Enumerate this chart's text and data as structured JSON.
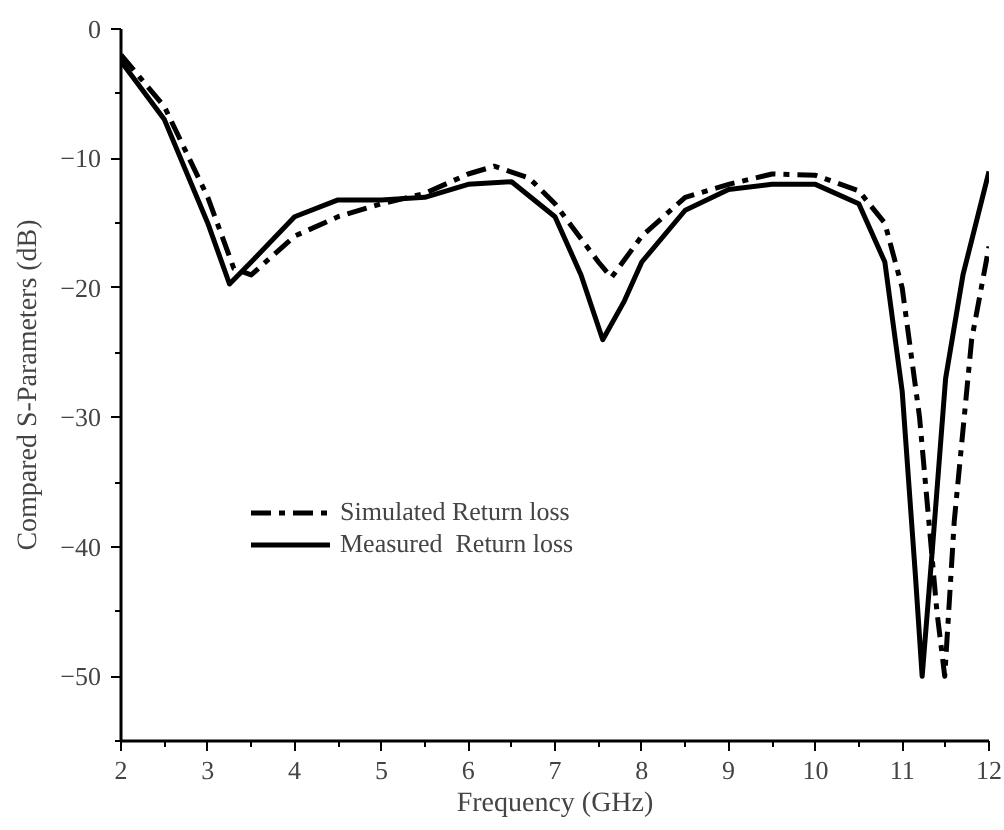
{
  "chart_data": {
    "type": "line",
    "xlabel": "Frequency (GHz)",
    "ylabel": "Compared S-Parameters (dB)",
    "xlim": [
      2,
      12
    ],
    "xticks": [
      2,
      3,
      4,
      5,
      6,
      7,
      8,
      9,
      10,
      11,
      12
    ],
    "ylim": [
      -55,
      0
    ],
    "yticks": [
      0,
      -10,
      -20,
      -30,
      -40,
      -50
    ],
    "grid": false,
    "legend": "bottom left",
    "series": [
      {
        "name": "Simulated Return loss",
        "color": "#000000",
        "line_style": "dashdot",
        "x": [
          2,
          2.5,
          3,
          3.3,
          3.5,
          4,
          4.5,
          5,
          5.5,
          6,
          6.3,
          6.7,
          7,
          7.5,
          7.65,
          8,
          8.5,
          9,
          9.5,
          10,
          10.5,
          10.8,
          11,
          11.2,
          11.4,
          11.49,
          11.6,
          11.8,
          12
        ],
        "values": [
          -2,
          -6,
          -13,
          -18.5,
          -19,
          -16,
          -14.5,
          -13.5,
          -12.7,
          -11.2,
          -10.6,
          -11.5,
          -13.5,
          -18,
          -19.2,
          -16,
          -13,
          -12,
          -11.2,
          -11.3,
          -12.5,
          -15,
          -20,
          -30,
          -45,
          -50,
          -38,
          -24,
          -16.8
        ]
      },
      {
        "name": "Measured  Return loss",
        "color": "#000000",
        "line_style": "solid",
        "x": [
          2,
          2.5,
          3,
          3.25,
          3.5,
          4,
          4.5,
          5,
          5.5,
          6,
          6.5,
          7,
          7.3,
          7.55,
          7.8,
          8,
          8.5,
          9,
          9.5,
          10,
          10.5,
          10.8,
          11,
          11.15,
          11.23,
          11.35,
          11.5,
          11.7,
          12
        ],
        "values": [
          -2.5,
          -7,
          -15,
          -19.7,
          -18,
          -14.5,
          -13.2,
          -13.2,
          -13,
          -12,
          -11.8,
          -14.5,
          -19,
          -24,
          -21,
          -18,
          -14,
          -12.4,
          -12,
          -12,
          -13.5,
          -18,
          -28,
          -42,
          -50,
          -40,
          -27,
          -19,
          -11
        ]
      }
    ]
  }
}
